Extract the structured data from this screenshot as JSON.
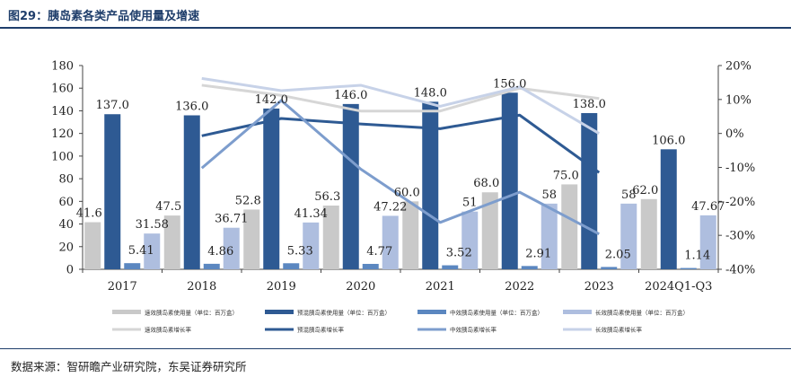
{
  "figure": {
    "title": "图29：胰岛素各类产品使用量及增速",
    "source": "数据来源：智研瞻产业研究院，东吴证券研究所"
  },
  "chart_data": {
    "type": "bar",
    "title": "图29：胰岛素各类产品使用量及增速",
    "categories": [
      "2017",
      "2018",
      "2019",
      "2020",
      "2021",
      "2022",
      "2023",
      "2024Q1-Q3"
    ],
    "left_axis": {
      "ylim": [
        0,
        180
      ],
      "ticks": [
        0,
        20,
        40,
        60,
        80,
        100,
        120,
        140,
        160,
        180
      ]
    },
    "right_axis": {
      "ylim": [
        -40,
        20
      ],
      "ticks": [
        "-40%",
        "-30%",
        "-20%",
        "-10%",
        "0%",
        "10%",
        "20%"
      ],
      "tick_values": [
        -40,
        -30,
        -20,
        -10,
        0,
        10,
        20
      ]
    },
    "series": [
      {
        "name": "速效胰岛素使用量（单位：百万盒）",
        "kind": "bar",
        "color": "#c9c9c9",
        "values": [
          41.6,
          47.5,
          52.8,
          56.3,
          60.0,
          68.0,
          75.0,
          62.0
        ],
        "labels": [
          "41.6",
          "47.5",
          "52.8",
          "56.3",
          "60.0",
          "68.0",
          "75.0",
          "62.0"
        ]
      },
      {
        "name": "预混胰岛素使用量（单位：百万盒）",
        "kind": "bar",
        "color": "#2e5a93",
        "values": [
          137.0,
          136.0,
          142.0,
          146.0,
          148.0,
          156.0,
          138.0,
          106.0
        ],
        "labels": [
          "137.0",
          "136.0",
          "142.0",
          "146.0",
          "148.0",
          "156.0",
          "138.0",
          "106.0"
        ]
      },
      {
        "name": "中效胰岛素使用量（单位：百万盒）",
        "kind": "bar",
        "color": "#5b87c0",
        "values": [
          5.41,
          4.86,
          5.33,
          4.77,
          3.52,
          2.91,
          2.05,
          1.14
        ],
        "labels": [
          "5.41",
          "4.86",
          "5.33",
          "4.77",
          "3.52",
          "2.91",
          "2.05",
          "1.14"
        ]
      },
      {
        "name": "长效胰岛素使用量（单位：百万盒）",
        "kind": "bar",
        "color": "#aebedf",
        "values": [
          31.58,
          36.71,
          41.34,
          47.22,
          51,
          58,
          58,
          47.67
        ],
        "labels": [
          "31.58",
          "36.71",
          "41.34",
          "47.22",
          "51",
          "58",
          "58",
          "47.67"
        ]
      },
      {
        "name": "速效胰岛素增长率",
        "kind": "line",
        "color": "#d6d6d6",
        "values": [
          null,
          14.2,
          11.2,
          6.6,
          6.6,
          13.3,
          10.3,
          null
        ]
      },
      {
        "name": "预混胰岛素增长率",
        "kind": "line",
        "color": "#2e5a93",
        "values": [
          null,
          -0.7,
          4.4,
          2.8,
          1.4,
          5.4,
          -11.5,
          null
        ]
      },
      {
        "name": "中效胰岛素增长率",
        "kind": "line",
        "color": "#7d9dcd",
        "values": [
          null,
          -10.2,
          9.7,
          -10.5,
          -26.2,
          -17.3,
          -29.6,
          null
        ]
      },
      {
        "name": "长效胰岛素增长率",
        "kind": "line",
        "color": "#c7d2e8",
        "values": [
          null,
          16.2,
          12.6,
          14.2,
          8.0,
          13.7,
          0.0,
          null
        ]
      }
    ],
    "legend": {
      "position": "bottom",
      "entries": [
        "速效胰岛素使用量（单位：百万盒）",
        "预混胰岛素使用量（单位：百万盒）",
        "中效胰岛素使用量（单位：百万盒）",
        "长效胰岛素使用量（单位：百万盒）",
        "速效胰岛素增长率",
        "预混胰岛素增长率",
        "中效胰岛素增长率",
        "长效胰岛素增长率"
      ]
    }
  }
}
